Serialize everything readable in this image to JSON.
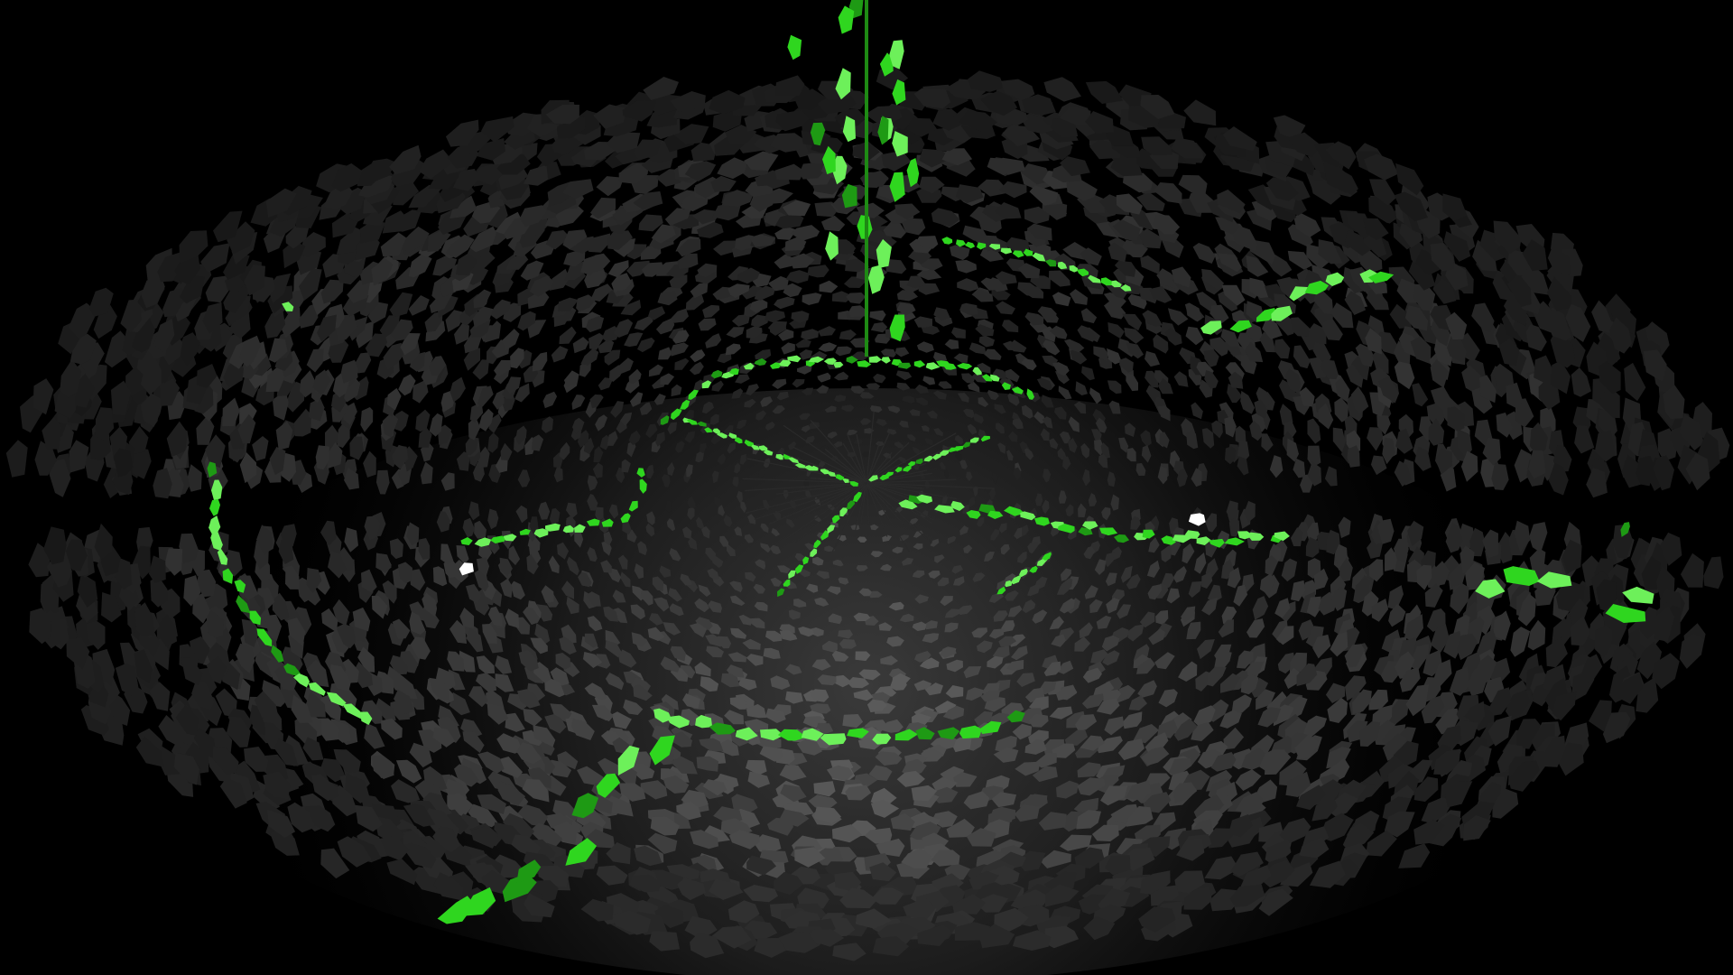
{
  "scene": {
    "name": "voronoi-tunnel-view",
    "background_color": "#000000",
    "cell_color_near": "#5a5a5a",
    "cell_color_far": "#101010",
    "path_color_bright": "#6df05a",
    "path_color_mid": "#2fd61f",
    "path_color_dark": "#1e9a14",
    "marker_color": "#ffffff",
    "marker_count": 2
  }
}
